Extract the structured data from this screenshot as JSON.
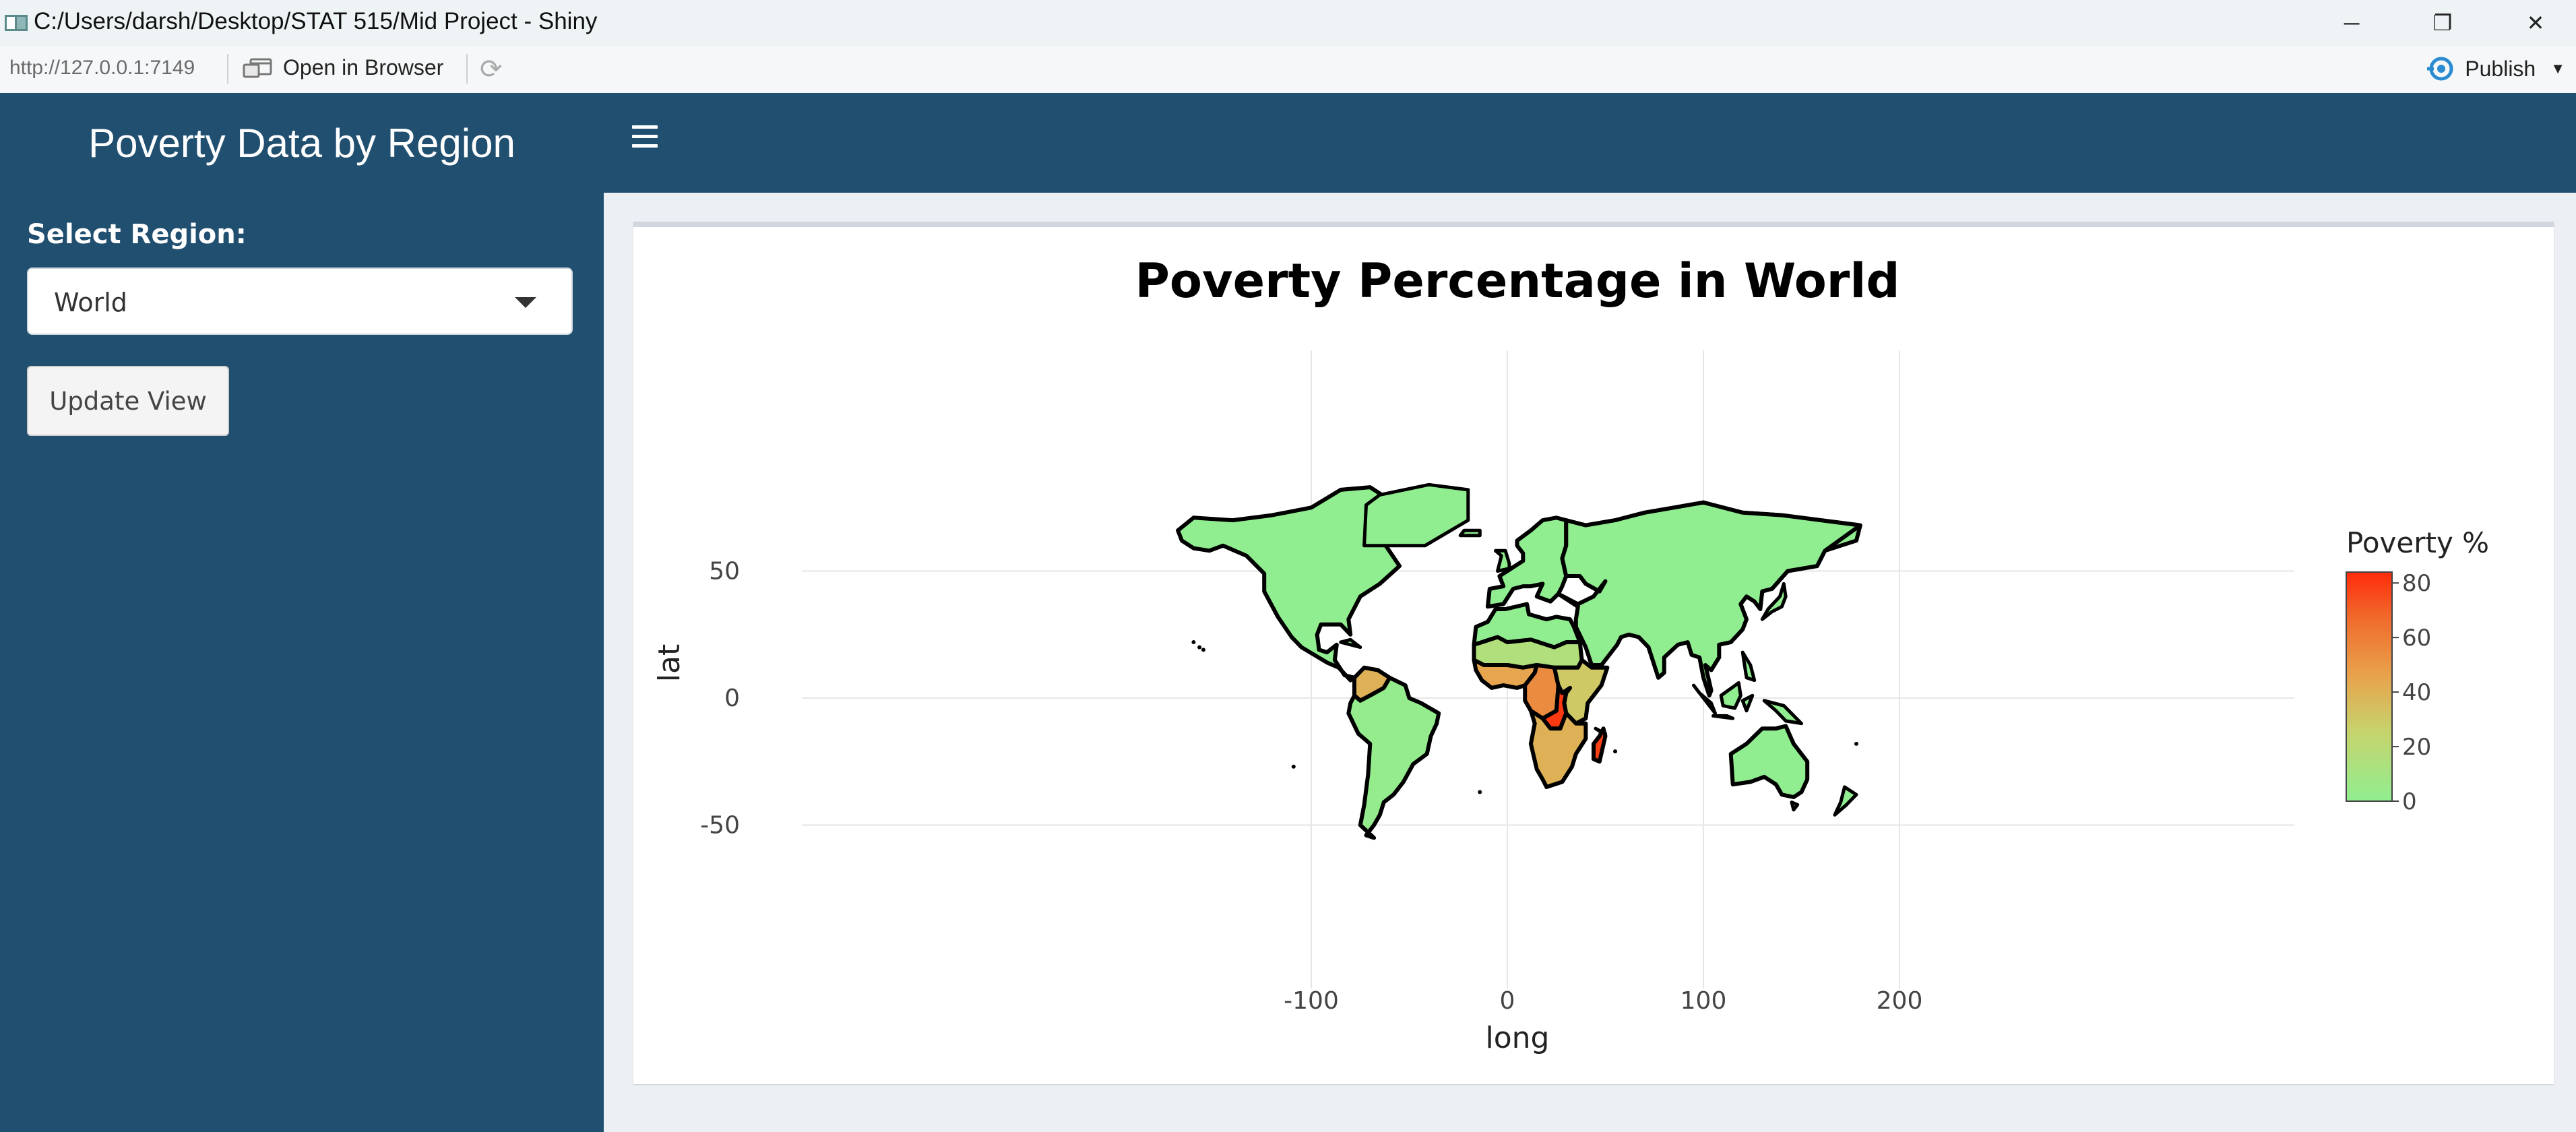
{
  "window": {
    "title": "C:/Users/darsh/Desktop/STAT 515/Mid Project - Shiny",
    "controls": [
      "─",
      "❐",
      "✕"
    ]
  },
  "toolbar": {
    "url": "http://127.0.0.1:7149",
    "open_in_browser": "Open in Browser",
    "publish": "Publish"
  },
  "header": {
    "title": "Poverty Data by Region"
  },
  "sidebar": {
    "select_label": "Select Region:",
    "select_value": "World",
    "button_label": "Update View"
  },
  "colors": {
    "header": "#204f70",
    "content_bg": "#ecf0f5",
    "land_low": "#90ee90",
    "land_high": "#ff2b0a"
  },
  "chart_data": {
    "type": "map",
    "title": "Poverty Percentage in World",
    "xlabel": "long",
    "ylabel": "lat",
    "xticks": [
      -100,
      0,
      100,
      200
    ],
    "yticks": [
      50,
      0,
      -50
    ],
    "legend": {
      "title": "Poverty %",
      "ticks": [
        80,
        60,
        40,
        20,
        0
      ],
      "range": [
        0,
        84
      ],
      "position": "right"
    },
    "regions": [
      {
        "name": "North America",
        "poverty": 0
      },
      {
        "name": "South America",
        "poverty": 2
      },
      {
        "name": "Colombia/Venezuela",
        "poverty": 40
      },
      {
        "name": "Europe",
        "poverty": 0
      },
      {
        "name": "Russia",
        "poverty": 0
      },
      {
        "name": "Asia",
        "poverty": 0
      },
      {
        "name": "Australia",
        "poverty": 0
      },
      {
        "name": "Northern Africa",
        "poverty": 0
      },
      {
        "name": "Sahel",
        "poverty": 15
      },
      {
        "name": "West Africa",
        "poverty": 45
      },
      {
        "name": "Central Africa",
        "poverty": 55
      },
      {
        "name": "East Africa",
        "poverty": 30
      },
      {
        "name": "DR Congo/Burundi",
        "poverty": 80
      },
      {
        "name": "Southern Africa",
        "poverty": 40
      },
      {
        "name": "Madagascar",
        "poverty": 78
      }
    ]
  }
}
